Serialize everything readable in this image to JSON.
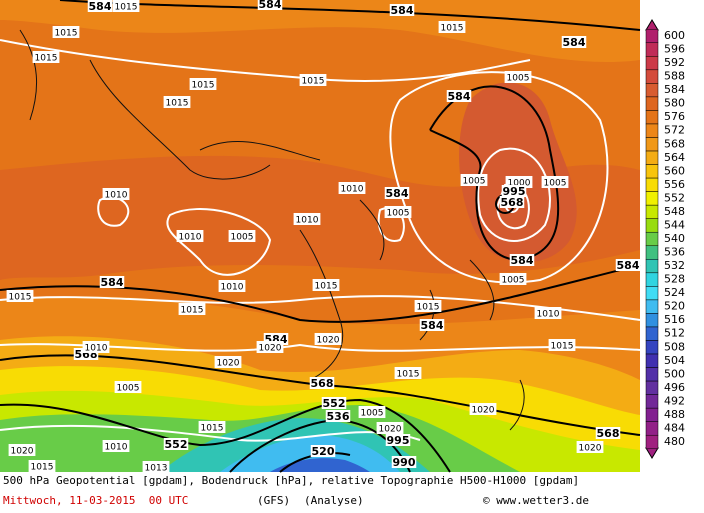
{
  "map_labels": [
    "584",
    "1015",
    "584",
    "584",
    "1015",
    "584",
    "1015",
    "1015",
    "1015",
    "1015",
    "1015",
    "584",
    "1005",
    "1010",
    "1010",
    "1005",
    "1010",
    "1010",
    "584",
    "1005",
    "1005",
    "1000",
    "995",
    "568",
    "1005",
    "584",
    "584",
    "1005",
    "584",
    "1015",
    "1010",
    "1015",
    "1015",
    "1015",
    "584",
    "1010",
    "584",
    "1020",
    "1020",
    "1015",
    "568",
    "1010",
    "1020",
    "1005",
    "568",
    "1015",
    "552",
    "536",
    "1020",
    "1005",
    "1020",
    "995",
    "1015",
    "552",
    "1010",
    "568",
    "1020",
    "520",
    "990",
    "1020",
    "1015",
    "1013"
  ],
  "legend": [
    {
      "label": "600",
      "color": "#b0206c"
    },
    {
      "label": "596",
      "color": "#c02c58"
    },
    {
      "label": "592",
      "color": "#cc3a48"
    },
    {
      "label": "588",
      "color": "#d44c3c"
    },
    {
      "label": "584",
      "color": "#d85c30"
    },
    {
      "label": "580",
      "color": "#de6620"
    },
    {
      "label": "576",
      "color": "#e47418"
    },
    {
      "label": "572",
      "color": "#ec8618"
    },
    {
      "label": "568",
      "color": "#f09818"
    },
    {
      "label": "564",
      "color": "#f4ac14"
    },
    {
      "label": "560",
      "color": "#f8c40c"
    },
    {
      "label": "556",
      "color": "#f8dc04"
    },
    {
      "label": "552",
      "color": "#f0f000"
    },
    {
      "label": "548",
      "color": "#c8e800"
    },
    {
      "label": "544",
      "color": "#98dc10"
    },
    {
      "label": "540",
      "color": "#68cc48"
    },
    {
      "label": "536",
      "color": "#40c080"
    },
    {
      "label": "532",
      "color": "#30c4b4"
    },
    {
      "label": "528",
      "color": "#30d4e0"
    },
    {
      "label": "524",
      "color": "#40dcf4"
    },
    {
      "label": "520",
      "color": "#40bcf0"
    },
    {
      "label": "516",
      "color": "#3090e0"
    },
    {
      "label": "512",
      "color": "#3064d0"
    },
    {
      "label": "508",
      "color": "#3444c0"
    },
    {
      "label": "504",
      "color": "#4030b0"
    },
    {
      "label": "500",
      "color": "#5230a8"
    },
    {
      "label": "496",
      "color": "#6230a0"
    },
    {
      "label": "492",
      "color": "#722898"
    },
    {
      "label": "488",
      "color": "#822090"
    },
    {
      "label": "484",
      "color": "#922088"
    },
    {
      "label": "480",
      "color": "#a02080"
    }
  ],
  "footer": {
    "line1": "500 hPa Geopotential [gpdam], Bodendruck [hPa], relative Topographie H500-H1000 [gpdam]",
    "date": "Mittwoch, 11-03-2015  00 UTC",
    "model": "(GFS)",
    "run": "(Analyse)",
    "credit": "© www.wetter3.de"
  }
}
